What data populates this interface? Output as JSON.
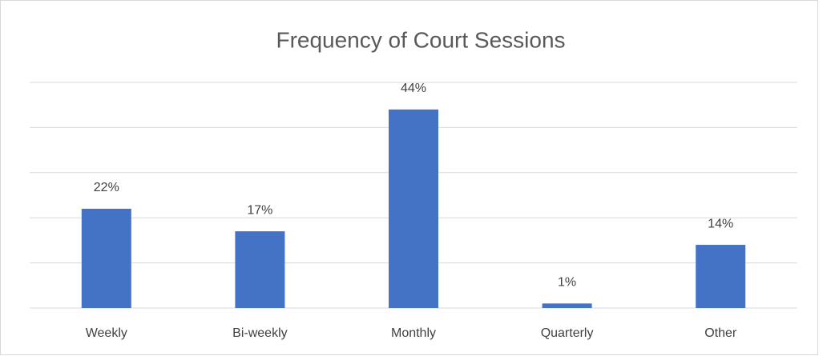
{
  "chart_data": {
    "type": "bar",
    "title": "Frequency of Court Sessions",
    "categories": [
      "Weekly",
      "Bi-weekly",
      "Monthly",
      "Quarterly",
      "Other"
    ],
    "values": [
      22,
      17,
      44,
      1,
      14
    ],
    "value_labels": [
      "22%",
      "17%",
      "44%",
      "1%",
      "14%"
    ],
    "color": "#4472c4",
    "ylim": [
      0,
      50
    ],
    "yticks": [
      0,
      10,
      20,
      30,
      40,
      50
    ],
    "grid": true
  }
}
